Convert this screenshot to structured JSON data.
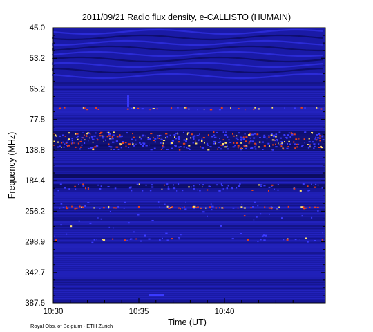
{
  "chart_data": {
    "type": "heatmap",
    "title": "2011/09/21  Radio flux density, e-CALLISTO (HUMAIN)",
    "xlabel": "Time (UT)",
    "ylabel": "Frequency (MHz)",
    "x_ticks": [
      "10:30",
      "10:35",
      "10:40"
    ],
    "y_ticks": [
      "45.0",
      "53.2",
      "65.2",
      "77.8",
      "138.8",
      "184.4",
      "256.2",
      "298.9",
      "342.7",
      "387.6"
    ],
    "colors": {
      "background": "#1a1aa6",
      "dark": "#050540",
      "bright": "#3a3aff",
      "hot": "#e8401c",
      "hottest": "#ffe070"
    }
  },
  "footer": {
    "credit": "Royal Obs. of Belgium - ETH Zurich"
  }
}
